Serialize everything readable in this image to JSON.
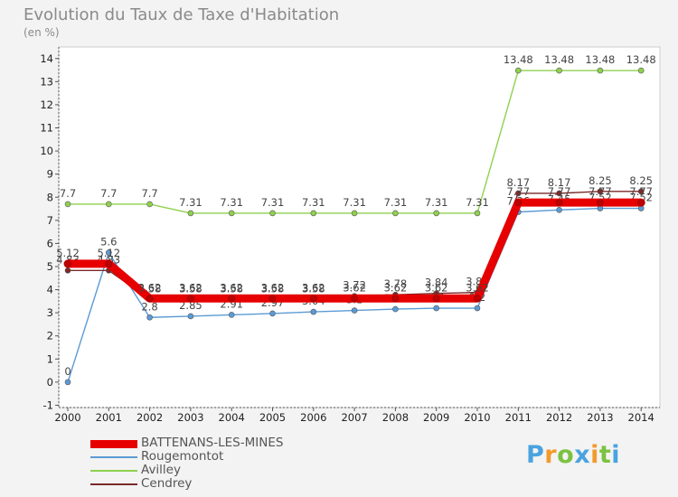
{
  "header": {
    "title": "Evolution du Taux de Taxe d'Habitation",
    "unit": "(en %)"
  },
  "logo": {
    "letters": [
      "P",
      "r",
      "o",
      "x",
      "i",
      "t",
      "i"
    ],
    "colors": [
      "#4aa3df",
      "#f39a2c",
      "#7cc242",
      "#4aa3df",
      "#f39a2c",
      "#7cc242",
      "#4aa3df"
    ]
  },
  "chart_data": {
    "type": "line",
    "x": [
      "2000",
      "2001",
      "2002",
      "2003",
      "2004",
      "2005",
      "2006",
      "2007",
      "2008",
      "2009",
      "2010",
      "2011",
      "2012",
      "2013",
      "2014"
    ],
    "yticks": [
      -1,
      0,
      1,
      2,
      3,
      4,
      5,
      6,
      7,
      8,
      9,
      10,
      11,
      12,
      13,
      14
    ],
    "ylim": [
      -1.1,
      14.5
    ],
    "grid": false,
    "legend_position": "bottom-left",
    "series": [
      {
        "name": "Avilley",
        "color": "#8fd14f",
        "values": [
          7.7,
          7.7,
          7.7,
          7.31,
          7.31,
          7.31,
          7.31,
          7.31,
          7.31,
          7.31,
          7.31,
          13.48,
          13.48,
          13.48,
          13.48
        ],
        "labels": [
          "7.7",
          "7.7",
          "7.7",
          "7.31",
          "7.31",
          "7.31",
          "7.31",
          "7.31",
          "7.31",
          "7.31",
          "7.31",
          "13.48",
          "13.48",
          "13.48",
          "13.48"
        ]
      },
      {
        "name": "Rougemontot",
        "color": "#5b9bd5",
        "values": [
          0,
          5.6,
          2.8,
          2.85,
          2.91,
          2.97,
          3.04,
          3.1,
          3.16,
          3.2,
          3.2,
          7.36,
          7.45,
          7.52,
          7.52
        ],
        "labels": [
          "0",
          "5.6",
          "2.8",
          "2.85",
          "2.91",
          "2.97",
          "3.04",
          "3.1",
          "3.16",
          "3.2",
          "3.2",
          "7.36",
          "7.45",
          "7.52",
          "7.52"
        ]
      },
      {
        "name": "Cendrey",
        "color": "#7b2a2a",
        "values": [
          4.83,
          4.83,
          3.58,
          3.58,
          3.58,
          3.58,
          3.58,
          3.72,
          3.78,
          3.84,
          3.88,
          8.17,
          8.17,
          8.25,
          8.25
        ],
        "labels": [
          "4.83",
          "4.83",
          "3.58",
          "3.58",
          "3.58",
          "3.58",
          "3.58",
          "3.72",
          "3.78",
          "3.84",
          "3.88",
          "8.17",
          "8.17",
          "8.25",
          "8.25"
        ]
      },
      {
        "name": "BATTENANS-LES-MINES",
        "color": "#e60000",
        "values": [
          5.12,
          5.12,
          3.62,
          3.62,
          3.62,
          3.62,
          3.62,
          3.62,
          3.62,
          3.62,
          3.62,
          7.77,
          7.77,
          7.77,
          7.77
        ],
        "labels": [
          "5.12",
          "5.12",
          "3.62",
          "3.62",
          "3.62",
          "3.62",
          "3.62",
          "3.62",
          "3.62",
          "3.62",
          "3.62",
          "7.77",
          "7.77",
          "7.77",
          "7.77"
        ]
      }
    ],
    "legend_order": [
      "BATTENANS-LES-MINES",
      "Rougemontot",
      "Avilley",
      "Cendrey"
    ]
  }
}
